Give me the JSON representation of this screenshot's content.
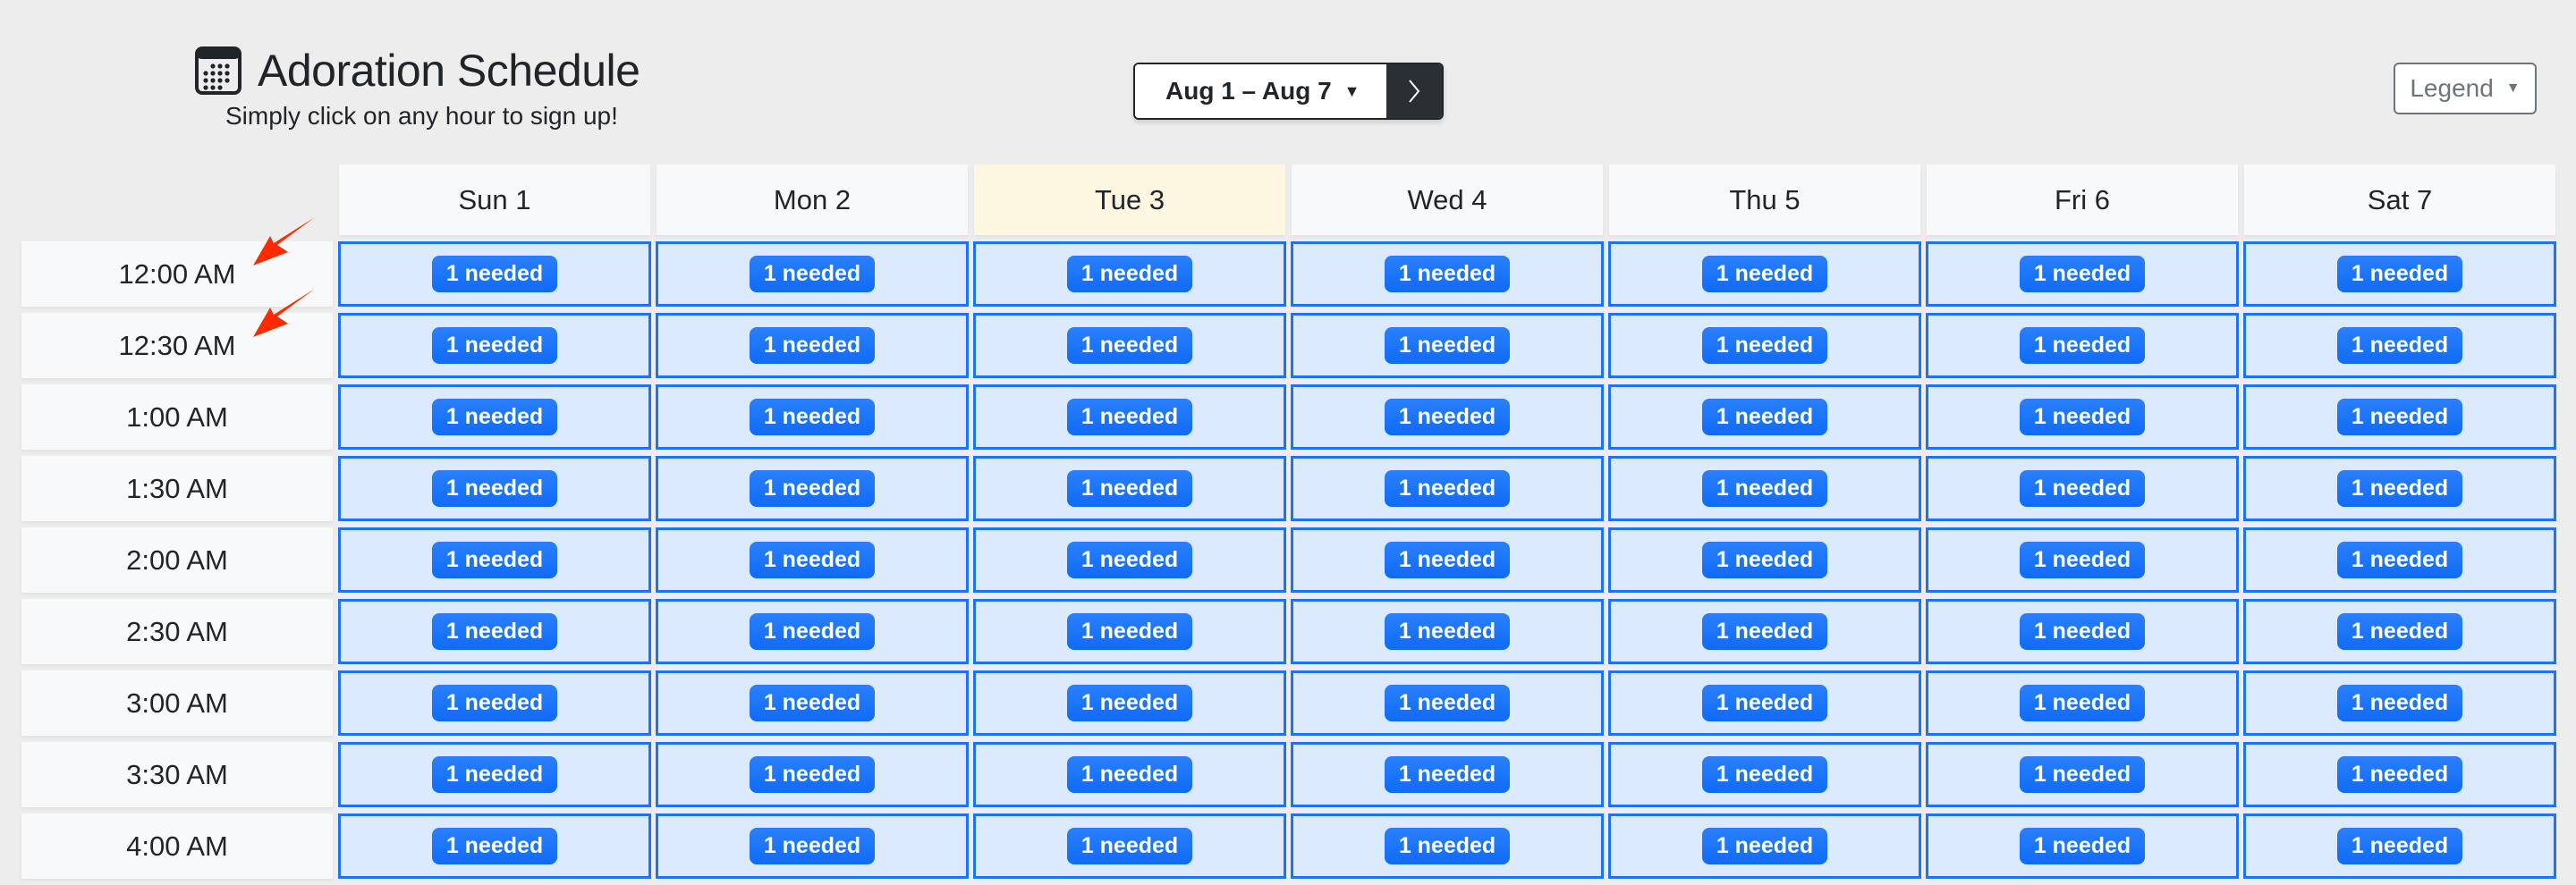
{
  "header": {
    "title": "Adoration Schedule",
    "subtitle": "Simply click on any hour to sign up!",
    "icon": "calendar-icon"
  },
  "date_nav": {
    "range": "Aug 1 – Aug 7",
    "next_icon": "chevron-right-icon"
  },
  "legend": {
    "label": "Legend"
  },
  "days": [
    {
      "label": "Sun 1",
      "today": false
    },
    {
      "label": "Mon 2",
      "today": false
    },
    {
      "label": "Tue 3",
      "today": true
    },
    {
      "label": "Wed 4",
      "today": false
    },
    {
      "label": "Thu 5",
      "today": false
    },
    {
      "label": "Fri 6",
      "today": false
    },
    {
      "label": "Sat 7",
      "today": false
    }
  ],
  "times": [
    "12:00 AM",
    "12:30 AM",
    "1:00 AM",
    "1:30 AM",
    "2:00 AM",
    "2:30 AM",
    "3:00 AM",
    "3:30 AM",
    "4:00 AM"
  ],
  "slot_label": "1 needed",
  "colors": {
    "accent": "#1a73f8",
    "slot_bg": "#dbeafe",
    "today_bg": "#fdf7e1",
    "annotation_arrow": "#ff2a00"
  }
}
